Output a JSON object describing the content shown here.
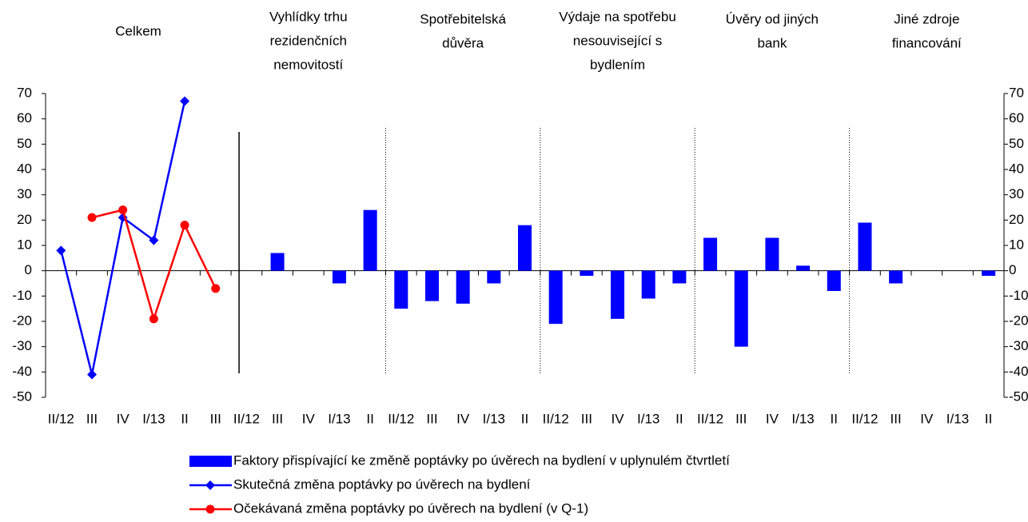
{
  "chart_data": {
    "type": "bar",
    "groups": [
      {
        "label": [
          "Celkem"
        ]
      },
      {
        "label": [
          "Vyhlídky trhu",
          "rezidenčních",
          "nemovitostí"
        ]
      },
      {
        "label": [
          "Spotřebitelská",
          "důvěra"
        ]
      },
      {
        "label": [
          "Výdaje na spotřebu",
          "nesouvisející s",
          "bydlením"
        ]
      },
      {
        "label": [
          "Úvěry od jiných",
          "bank"
        ]
      },
      {
        "label": [
          "Jiné zdroje",
          "financování"
        ]
      }
    ],
    "categories": [
      "II/12",
      "III",
      "IV",
      "I/13",
      "II",
      "III",
      "II/12",
      "III",
      "IV",
      "I/13",
      "II",
      "II/12",
      "III",
      "IV",
      "I/13",
      "II",
      "II/12",
      "III",
      "IV",
      "I/13",
      "II",
      "II/12",
      "III",
      "IV",
      "I/13",
      "II",
      "II/12",
      "III",
      "IV",
      "I/13",
      "II"
    ],
    "series": [
      {
        "name": "Faktory přispívající ke změně poptávky po úvěrech na bydlení v uplynulém čtvrtletí",
        "type": "bar",
        "color": "#0000ff",
        "values": [
          null,
          null,
          null,
          null,
          null,
          null,
          0,
          7,
          0,
          -5,
          24,
          -15,
          -12,
          -13,
          -5,
          18,
          -21,
          -2,
          -19,
          -11,
          -5,
          13,
          -30,
          13,
          2,
          -8,
          19,
          -5,
          0,
          0,
          -2
        ]
      },
      {
        "name": "Skutečná změna poptávky po úvěrech na bydlení",
        "type": "line",
        "marker": "diamond",
        "color": "#0000ff",
        "values": [
          8,
          -41,
          21,
          12,
          67,
          null,
          null,
          null,
          null,
          null,
          null,
          null,
          null,
          null,
          null,
          null,
          null,
          null,
          null,
          null,
          null,
          null,
          null,
          null,
          null,
          null,
          null,
          null,
          null,
          null,
          null
        ]
      },
      {
        "name": "Očekávaná změna poptávky po úvěrech na bydlení (v Q-1)",
        "type": "line",
        "marker": "circle",
        "color": "#ff0000",
        "values": [
          null,
          21,
          24,
          -19,
          18,
          -7,
          null,
          null,
          null,
          null,
          null,
          null,
          null,
          null,
          null,
          null,
          null,
          null,
          null,
          null,
          null,
          null,
          null,
          null,
          null,
          null,
          null,
          null,
          null,
          null,
          null
        ]
      }
    ],
    "ylim": [
      -50,
      70
    ],
    "yticks": [
      -50,
      -40,
      -30,
      -20,
      -10,
      0,
      10,
      20,
      30,
      40,
      50,
      60,
      70
    ],
    "y2lim": [
      -50,
      70
    ],
    "y2ticks": [
      -50,
      -40,
      -30,
      -20,
      -10,
      0,
      10,
      20,
      30,
      40,
      50,
      60,
      70
    ]
  }
}
